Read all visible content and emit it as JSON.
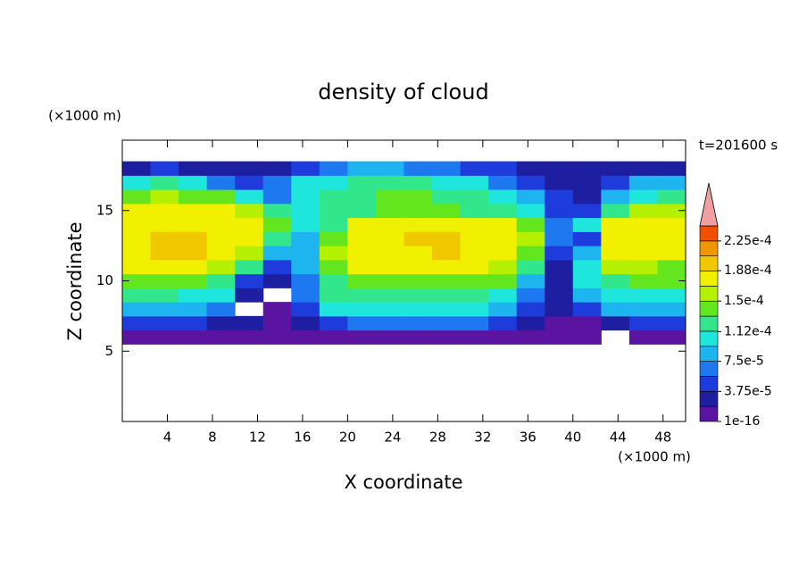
{
  "chart_data": {
    "type": "contour",
    "title": "density of cloud",
    "x_label": "X coordinate",
    "y_label": "Z coordinate",
    "x_unit": "(×1000 m)",
    "y_unit": "(×1000 m)",
    "time_label": "t=201600 s",
    "xlim": [
      0,
      50
    ],
    "ylim": [
      0,
      20
    ],
    "xticks": [
      4,
      8,
      12,
      16,
      20,
      24,
      28,
      32,
      36,
      40,
      44,
      48
    ],
    "yticks": [
      5,
      10,
      15
    ],
    "x": [
      1.25,
      3.75,
      6.25,
      8.75,
      11.25,
      13.75,
      16.25,
      18.75,
      21.25,
      23.75,
      26.25,
      28.75,
      31.25,
      33.75,
      36.25,
      38.75,
      41.25,
      43.75,
      46.25,
      48.75
    ],
    "z": [
      6,
      7,
      8,
      9,
      10,
      11,
      12,
      13,
      14,
      15,
      16,
      17,
      18
    ],
    "values": [
      [
        1e-05,
        1e-05,
        1e-05,
        1e-05,
        1e-05,
        1e-05,
        1e-05,
        1e-05,
        1e-05,
        1e-05,
        1e-05,
        1e-05,
        1e-05,
        1e-05,
        1e-05,
        1e-05,
        1e-05,
        null,
        1e-05,
        1e-05
      ],
      [
        5e-05,
        5e-05,
        5e-05,
        3e-05,
        2e-05,
        1e-05,
        2e-05,
        5e-05,
        6e-05,
        6e-05,
        6e-05,
        6e-05,
        6e-05,
        5e-05,
        2e-05,
        1e-05,
        1e-05,
        3e-05,
        5e-05,
        5e-05
      ],
      [
        9e-05,
        9e-05,
        8e-05,
        6e-05,
        null,
        1e-05,
        4e-05,
        0.0001,
        0.00011,
        0.00011,
        0.00011,
        0.00011,
        0.00011,
        8e-05,
        4e-05,
        2e-05,
        4e-05,
        8e-05,
        8e-05,
        9e-05
      ],
      [
        0.00012,
        0.00012,
        0.00011,
        0.0001,
        3e-05,
        null,
        6e-05,
        0.00012,
        0.00013,
        0.00013,
        0.00013,
        0.00013,
        0.00013,
        0.00011,
        6e-05,
        3e-05,
        8e-05,
        0.00011,
        0.00011,
        0.00011
      ],
      [
        0.00014,
        0.00014,
        0.00014,
        0.00012,
        5e-05,
        2e-05,
        7e-05,
        0.00013,
        0.00015,
        0.00015,
        0.00015,
        0.00015,
        0.00015,
        0.00014,
        8e-05,
        3e-05,
        0.0001,
        0.00013,
        0.00014,
        0.00014
      ],
      [
        0.00017,
        0.00017,
        0.00017,
        0.00016,
        0.00012,
        5e-05,
        8e-05,
        0.00015,
        0.00017,
        0.00017,
        0.00017,
        0.00017,
        0.00017,
        0.00016,
        0.00012,
        3e-05,
        0.00011,
        0.00016,
        0.00016,
        0.00015
      ],
      [
        0.00018,
        0.00019,
        0.00019,
        0.00018,
        0.00016,
        8e-05,
        9e-05,
        0.00016,
        0.00018,
        0.00018,
        0.00018,
        0.00019,
        0.00018,
        0.00018,
        0.00015,
        4e-05,
        9e-05,
        0.00017,
        0.00017,
        0.00017
      ],
      [
        0.00018,
        0.00019,
        0.00019,
        0.00018,
        0.00017,
        0.00012,
        9e-05,
        0.00014,
        0.00018,
        0.00018,
        0.00019,
        0.00019,
        0.00018,
        0.00018,
        0.00016,
        6e-05,
        5e-05,
        0.00017,
        0.00018,
        0.00018
      ],
      [
        0.00017,
        0.00018,
        0.00018,
        0.00018,
        0.00017,
        0.00015,
        0.0001,
        0.00013,
        0.00017,
        0.00018,
        0.00018,
        0.00018,
        0.00018,
        0.00017,
        0.00015,
        6e-05,
        0.0001,
        0.00017,
        0.00018,
        0.00017
      ],
      [
        0.00017,
        0.00017,
        0.00017,
        0.00017,
        0.00016,
        0.00013,
        0.00011,
        0.00012,
        0.00013,
        0.00014,
        0.00014,
        0.00014,
        0.00013,
        0.00012,
        0.00011,
        5e-05,
        4e-05,
        0.00012,
        0.00016,
        0.00016
      ],
      [
        0.00015,
        0.00016,
        0.00015,
        0.00014,
        0.00011,
        6e-05,
        0.00011,
        0.00012,
        0.00013,
        0.00014,
        0.00014,
        0.00013,
        0.00012,
        0.00011,
        8e-05,
        4e-05,
        3e-05,
        9e-05,
        0.0001,
        0.00012
      ],
      [
        0.00011,
        0.00012,
        0.0001,
        6e-05,
        4e-05,
        6e-05,
        0.0001,
        0.00011,
        0.00012,
        0.00012,
        0.00012,
        0.00011,
        0.0001,
        7e-05,
        5e-05,
        3e-05,
        3e-05,
        5e-05,
        9e-05,
        8e-05
      ],
      [
        3e-05,
        4e-05,
        3e-05,
        2e-05,
        2e-05,
        3e-05,
        5e-05,
        7e-05,
        8e-05,
        8e-05,
        7e-05,
        6e-05,
        5e-05,
        4e-05,
        3e-05,
        2e-05,
        2e-05,
        2e-05,
        3e-05,
        3e-05
      ]
    ],
    "colorbar": {
      "clim": [
        0,
        0.00024375
      ],
      "colors": [
        "#5a14a0",
        "#1e1ea0",
        "#1e3cdc",
        "#1e78f0",
        "#1eb4f0",
        "#1ee6dc",
        "#32e68c",
        "#64e61e",
        "#b4f000",
        "#f0f000",
        "#f0c800",
        "#f09600",
        "#f05000"
      ],
      "over_color": "#f0a0a0",
      "ticks": [
        {
          "value": 1e-16,
          "label": "1e-16"
        },
        {
          "value": 3.75e-05,
          "label": "3.75e-5"
        },
        {
          "value": 7.5e-05,
          "label": "7.5e-5"
        },
        {
          "value": 0.000112,
          "label": "1.12e-4"
        },
        {
          "value": 0.00015,
          "label": "1.5e-4"
        },
        {
          "value": 0.000188,
          "label": "1.88e-4"
        },
        {
          "value": 0.000225,
          "label": "2.25e-4"
        }
      ]
    }
  }
}
